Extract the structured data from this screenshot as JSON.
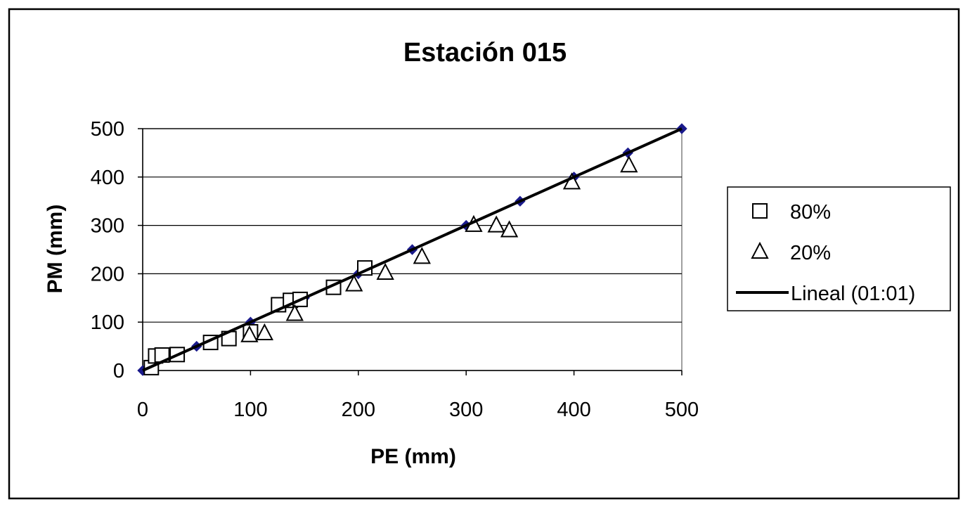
{
  "chart_data": {
    "type": "scatter",
    "title": "Estación 015",
    "xlabel": "PE (mm)",
    "ylabel": "PM (mm)",
    "xlim": [
      0,
      500
    ],
    "ylim": [
      0,
      500
    ],
    "x_ticks": [
      "0",
      "100",
      "200",
      "300",
      "400",
      "500"
    ],
    "y_ticks": [
      "0",
      "100",
      "200",
      "300",
      "400",
      "500"
    ],
    "grid": "horizontal",
    "legend_position": "right",
    "series": [
      {
        "name": "80%",
        "marker": "square",
        "points": [
          [
            8,
            6
          ],
          [
            12,
            30
          ],
          [
            18,
            32
          ],
          [
            32,
            33
          ],
          [
            63,
            58
          ],
          [
            80,
            66
          ],
          [
            100,
            80
          ],
          [
            126,
            136
          ],
          [
            137,
            145
          ],
          [
            146,
            147
          ],
          [
            177,
            172
          ],
          [
            206,
            212
          ]
        ]
      },
      {
        "name": "20%",
        "marker": "triangle",
        "points": [
          [
            99,
            73
          ],
          [
            113,
            77
          ],
          [
            141,
            117
          ],
          [
            196,
            178
          ],
          [
            225,
            202
          ],
          [
            259,
            235
          ],
          [
            307,
            301
          ],
          [
            328,
            300
          ],
          [
            340,
            290
          ],
          [
            398,
            389
          ],
          [
            451,
            424
          ]
        ]
      },
      {
        "name": "",
        "marker": "diamond",
        "color": "#1a1a8c",
        "points": [
          [
            0,
            0
          ],
          [
            50,
            50
          ],
          [
            100,
            100
          ],
          [
            150,
            150
          ],
          [
            200,
            200
          ],
          [
            250,
            250
          ],
          [
            300,
            300
          ],
          [
            350,
            350
          ],
          [
            400,
            400
          ],
          [
            450,
            450
          ],
          [
            500,
            500
          ]
        ]
      },
      {
        "name": "Lineal (01:01)",
        "marker": "line",
        "color": "#000000",
        "points": [
          [
            0,
            0
          ],
          [
            500,
            500
          ]
        ]
      }
    ]
  }
}
